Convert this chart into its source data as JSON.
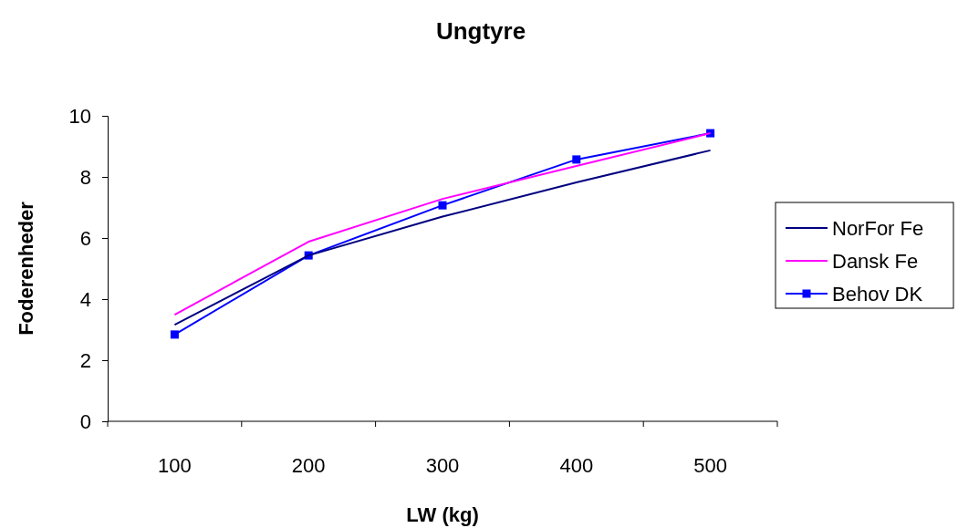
{
  "chart_data": {
    "type": "line",
    "title": "Ungtyre",
    "xlabel": "LW (kg)",
    "ylabel": "Foderenheder",
    "categories": [
      "100",
      "200",
      "300",
      "400",
      "500"
    ],
    "ylim": [
      0,
      10
    ],
    "yticks": [
      0,
      2,
      4,
      6,
      8,
      10
    ],
    "grid": false,
    "legend": "right",
    "line_style": "solid",
    "series": [
      {
        "name": "NorFor Fe",
        "color": "#000080",
        "values": [
          3.16,
          5.43,
          6.7,
          7.82,
          8.87
        ],
        "marker": "none"
      },
      {
        "name": "Dansk Fe",
        "color": "#ff00ff",
        "values": [
          3.49,
          5.88,
          7.28,
          8.36,
          9.43
        ],
        "marker": "none"
      },
      {
        "name": "Behov DK",
        "color": "#0000ff",
        "values": [
          2.84,
          5.43,
          7.07,
          8.57,
          9.43
        ],
        "marker": "square"
      }
    ]
  }
}
